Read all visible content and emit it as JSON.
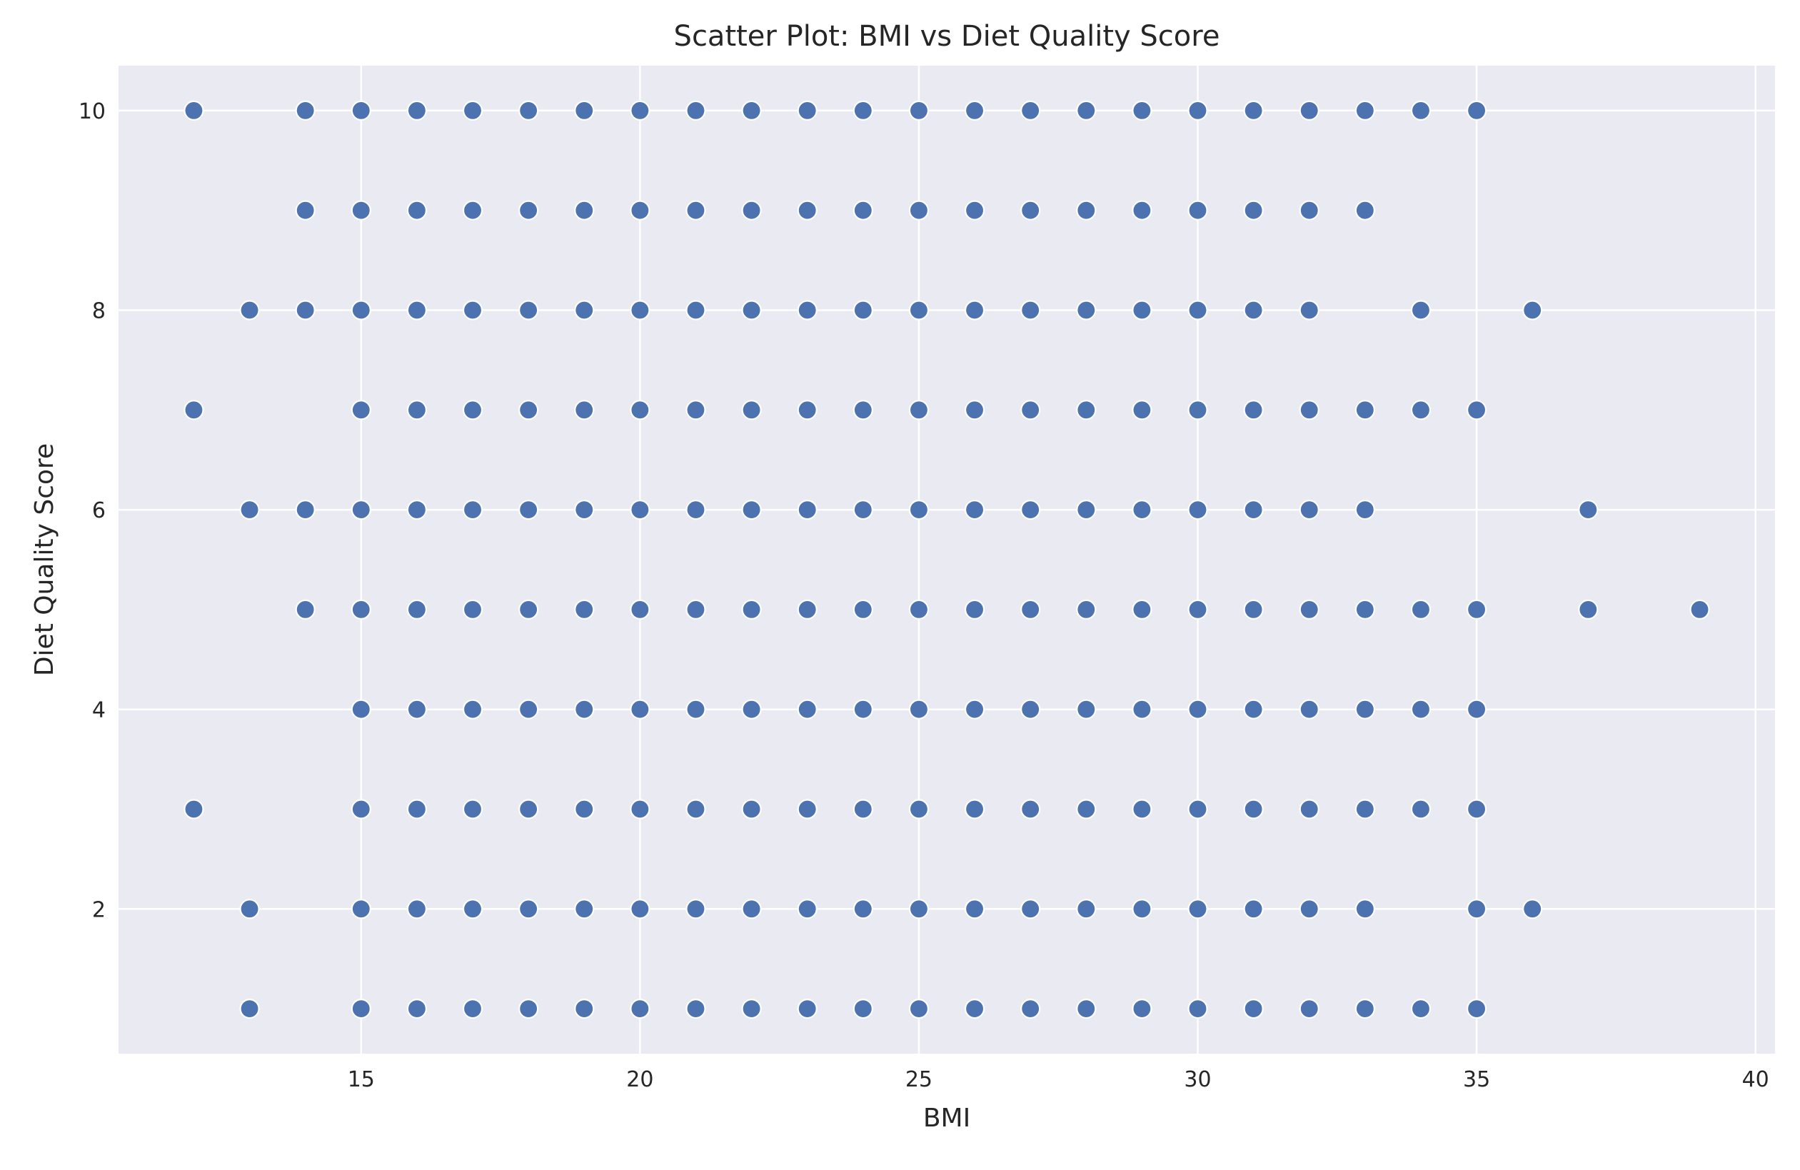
{
  "chart_data": {
    "type": "scatter",
    "title": "Scatter Plot: BMI vs Diet Quality Score",
    "xlabel": "BMI",
    "ylabel": "Diet Quality Score",
    "xlim": [
      10.65,
      40.35
    ],
    "ylim": [
      0.55,
      10.45
    ],
    "xticks": [
      15,
      20,
      25,
      30,
      35,
      40
    ],
    "yticks": [
      2,
      4,
      6,
      8,
      10
    ],
    "grid": true,
    "colors": {
      "background": "#eaeaf2",
      "grid": "#ffffff",
      "point": "#4c72b0",
      "point_edge": "#ffffff"
    },
    "points": [
      [
        12,
        10
      ],
      [
        12,
        7
      ],
      [
        12,
        3
      ],
      [
        13,
        8
      ],
      [
        13,
        6
      ],
      [
        13,
        2
      ],
      [
        13,
        1
      ],
      [
        14,
        10
      ],
      [
        14,
        9
      ],
      [
        14,
        8
      ],
      [
        14,
        6
      ],
      [
        14,
        5
      ],
      [
        15,
        10
      ],
      [
        15,
        9
      ],
      [
        15,
        8
      ],
      [
        15,
        7
      ],
      [
        15,
        6
      ],
      [
        15,
        5
      ],
      [
        15,
        4
      ],
      [
        15,
        3
      ],
      [
        15,
        2
      ],
      [
        15,
        1
      ],
      [
        16,
        10
      ],
      [
        16,
        9
      ],
      [
        16,
        8
      ],
      [
        16,
        7
      ],
      [
        16,
        6
      ],
      [
        16,
        5
      ],
      [
        16,
        4
      ],
      [
        16,
        3
      ],
      [
        16,
        2
      ],
      [
        16,
        1
      ],
      [
        17,
        10
      ],
      [
        17,
        9
      ],
      [
        17,
        8
      ],
      [
        17,
        7
      ],
      [
        17,
        6
      ],
      [
        17,
        5
      ],
      [
        17,
        4
      ],
      [
        17,
        3
      ],
      [
        17,
        2
      ],
      [
        17,
        1
      ],
      [
        18,
        10
      ],
      [
        18,
        9
      ],
      [
        18,
        8
      ],
      [
        18,
        7
      ],
      [
        18,
        6
      ],
      [
        18,
        5
      ],
      [
        18,
        4
      ],
      [
        18,
        3
      ],
      [
        18,
        2
      ],
      [
        18,
        1
      ],
      [
        19,
        10
      ],
      [
        19,
        9
      ],
      [
        19,
        8
      ],
      [
        19,
        7
      ],
      [
        19,
        6
      ],
      [
        19,
        5
      ],
      [
        19,
        4
      ],
      [
        19,
        3
      ],
      [
        19,
        2
      ],
      [
        19,
        1
      ],
      [
        20,
        10
      ],
      [
        20,
        9
      ],
      [
        20,
        8
      ],
      [
        20,
        7
      ],
      [
        20,
        6
      ],
      [
        20,
        5
      ],
      [
        20,
        4
      ],
      [
        20,
        3
      ],
      [
        20,
        2
      ],
      [
        20,
        1
      ],
      [
        21,
        10
      ],
      [
        21,
        9
      ],
      [
        21,
        8
      ],
      [
        21,
        7
      ],
      [
        21,
        6
      ],
      [
        21,
        5
      ],
      [
        21,
        4
      ],
      [
        21,
        3
      ],
      [
        21,
        2
      ],
      [
        21,
        1
      ],
      [
        22,
        10
      ],
      [
        22,
        9
      ],
      [
        22,
        8
      ],
      [
        22,
        7
      ],
      [
        22,
        6
      ],
      [
        22,
        5
      ],
      [
        22,
        4
      ],
      [
        22,
        3
      ],
      [
        22,
        2
      ],
      [
        22,
        1
      ],
      [
        23,
        10
      ],
      [
        23,
        9
      ],
      [
        23,
        8
      ],
      [
        23,
        7
      ],
      [
        23,
        6
      ],
      [
        23,
        5
      ],
      [
        23,
        4
      ],
      [
        23,
        3
      ],
      [
        23,
        2
      ],
      [
        23,
        1
      ],
      [
        24,
        10
      ],
      [
        24,
        9
      ],
      [
        24,
        8
      ],
      [
        24,
        7
      ],
      [
        24,
        6
      ],
      [
        24,
        5
      ],
      [
        24,
        4
      ],
      [
        24,
        3
      ],
      [
        24,
        2
      ],
      [
        24,
        1
      ],
      [
        25,
        10
      ],
      [
        25,
        9
      ],
      [
        25,
        8
      ],
      [
        25,
        7
      ],
      [
        25,
        6
      ],
      [
        25,
        5
      ],
      [
        25,
        4
      ],
      [
        25,
        3
      ],
      [
        25,
        2
      ],
      [
        25,
        1
      ],
      [
        26,
        10
      ],
      [
        26,
        9
      ],
      [
        26,
        8
      ],
      [
        26,
        7
      ],
      [
        26,
        6
      ],
      [
        26,
        5
      ],
      [
        26,
        4
      ],
      [
        26,
        3
      ],
      [
        26,
        2
      ],
      [
        26,
        1
      ],
      [
        27,
        10
      ],
      [
        27,
        9
      ],
      [
        27,
        8
      ],
      [
        27,
        7
      ],
      [
        27,
        6
      ],
      [
        27,
        5
      ],
      [
        27,
        4
      ],
      [
        27,
        3
      ],
      [
        27,
        2
      ],
      [
        27,
        1
      ],
      [
        28,
        10
      ],
      [
        28,
        9
      ],
      [
        28,
        8
      ],
      [
        28,
        7
      ],
      [
        28,
        6
      ],
      [
        28,
        5
      ],
      [
        28,
        4
      ],
      [
        28,
        3
      ],
      [
        28,
        2
      ],
      [
        28,
        1
      ],
      [
        29,
        10
      ],
      [
        29,
        9
      ],
      [
        29,
        8
      ],
      [
        29,
        7
      ],
      [
        29,
        6
      ],
      [
        29,
        5
      ],
      [
        29,
        4
      ],
      [
        29,
        3
      ],
      [
        29,
        2
      ],
      [
        29,
        1
      ],
      [
        30,
        10
      ],
      [
        30,
        9
      ],
      [
        30,
        8
      ],
      [
        30,
        7
      ],
      [
        30,
        6
      ],
      [
        30,
        5
      ],
      [
        30,
        4
      ],
      [
        30,
        3
      ],
      [
        30,
        2
      ],
      [
        30,
        1
      ],
      [
        31,
        10
      ],
      [
        31,
        9
      ],
      [
        31,
        8
      ],
      [
        31,
        7
      ],
      [
        31,
        6
      ],
      [
        31,
        5
      ],
      [
        31,
        4
      ],
      [
        31,
        3
      ],
      [
        31,
        2
      ],
      [
        31,
        1
      ],
      [
        32,
        10
      ],
      [
        32,
        9
      ],
      [
        32,
        8
      ],
      [
        32,
        7
      ],
      [
        32,
        6
      ],
      [
        32,
        5
      ],
      [
        32,
        4
      ],
      [
        32,
        3
      ],
      [
        32,
        2
      ],
      [
        32,
        1
      ],
      [
        33,
        10
      ],
      [
        33,
        9
      ],
      [
        33,
        7
      ],
      [
        33,
        6
      ],
      [
        33,
        5
      ],
      [
        33,
        4
      ],
      [
        33,
        3
      ],
      [
        33,
        2
      ],
      [
        33,
        1
      ],
      [
        34,
        10
      ],
      [
        34,
        8
      ],
      [
        34,
        7
      ],
      [
        34,
        5
      ],
      [
        34,
        4
      ],
      [
        34,
        3
      ],
      [
        34,
        1
      ],
      [
        35,
        10
      ],
      [
        35,
        7
      ],
      [
        35,
        5
      ],
      [
        35,
        4
      ],
      [
        35,
        3
      ],
      [
        35,
        2
      ],
      [
        35,
        1
      ],
      [
        36,
        8
      ],
      [
        36,
        2
      ],
      [
        37,
        6
      ],
      [
        37,
        5
      ],
      [
        39,
        5
      ]
    ]
  }
}
